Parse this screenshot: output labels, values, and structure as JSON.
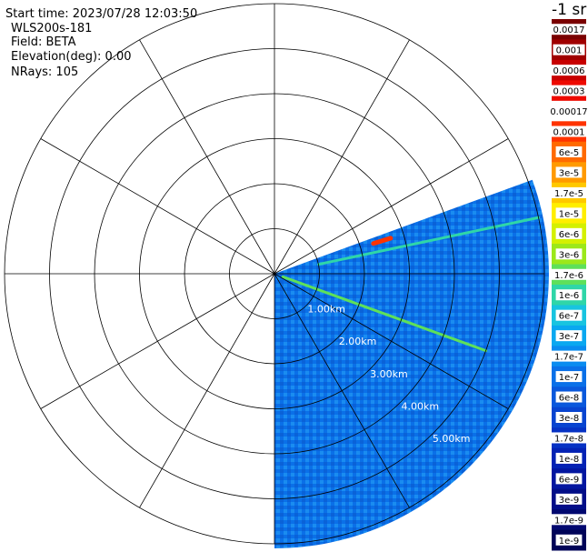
{
  "info": {
    "start_time": "Start time: 2023/07/28 12:03:50",
    "instrument": "WLS200s-181",
    "field": "Field: BETA",
    "elevation": "Elevation(deg): 0.00",
    "nrays": "NRays: 105"
  },
  "colorbar": {
    "unit_label": "-1 sr",
    "bins": [
      {
        "label": "0.0017",
        "color": "#7a0000"
      },
      {
        "label": "0.001",
        "color": "#a00000"
      },
      {
        "label": "0.0006",
        "color": "#c80000"
      },
      {
        "label": "0.0003",
        "color": "#ee0a00"
      },
      {
        "label": "0.00017",
        "color": "#ffffff"
      },
      {
        "label": "0.0001",
        "color": "#ff3300"
      },
      {
        "label": "6e-5",
        "color": "#ff6a00"
      },
      {
        "label": "3e-5",
        "color": "#ff9a00"
      },
      {
        "label": "1.7e-5",
        "color": "#ffc800"
      },
      {
        "label": "1e-5",
        "color": "#ffee00"
      },
      {
        "label": "6e-6",
        "color": "#d4f000"
      },
      {
        "label": "3e-6",
        "color": "#9ce81a"
      },
      {
        "label": "1.7e-6",
        "color": "#5ee05a"
      },
      {
        "label": "1e-6",
        "color": "#2fd6a8"
      },
      {
        "label": "6e-7",
        "color": "#18c4e0"
      },
      {
        "label": "3e-7",
        "color": "#0aa8f0"
      },
      {
        "label": "1.7e-7",
        "color": "#0a8cf0"
      },
      {
        "label": "1e-7",
        "color": "#0a70e8"
      },
      {
        "label": "6e-8",
        "color": "#0a58dc"
      },
      {
        "label": "3e-8",
        "color": "#0844d0"
      },
      {
        "label": "1.7e-8",
        "color": "#0632c4"
      },
      {
        "label": "1e-8",
        "color": "#0422b4"
      },
      {
        "label": "6e-9",
        "color": "#0316a0"
      },
      {
        "label": "3e-9",
        "color": "#020e88"
      },
      {
        "label": "1.7e-9",
        "color": "#010870"
      },
      {
        "label": "1e-9",
        "color": "#000458"
      }
    ]
  },
  "chart_data": {
    "type": "heatmap",
    "projection": "polar-ppi",
    "field": "BETA",
    "range_rings_km": [
      1,
      2,
      3,
      4,
      5,
      6
    ],
    "range_labels": [
      "1.00km",
      "2.00km",
      "3.00km",
      "4.00km",
      "5.00km"
    ],
    "spoke_interval_deg": 30,
    "scan_sector_deg": {
      "start": 70,
      "end": 180
    },
    "max_range_km": 6.1,
    "background_level": "1e-7",
    "features": [
      {
        "azimuth_deg": 78,
        "range_km": [
          1.0,
          6.0
        ],
        "level": "1e-6"
      },
      {
        "azimuth_deg": 110,
        "range_km": [
          0.2,
          5.0
        ],
        "level": "1.7e-6"
      },
      {
        "azimuth_deg": 73,
        "range_km": [
          2.3,
          2.7
        ],
        "level": "0.0001"
      }
    ]
  }
}
